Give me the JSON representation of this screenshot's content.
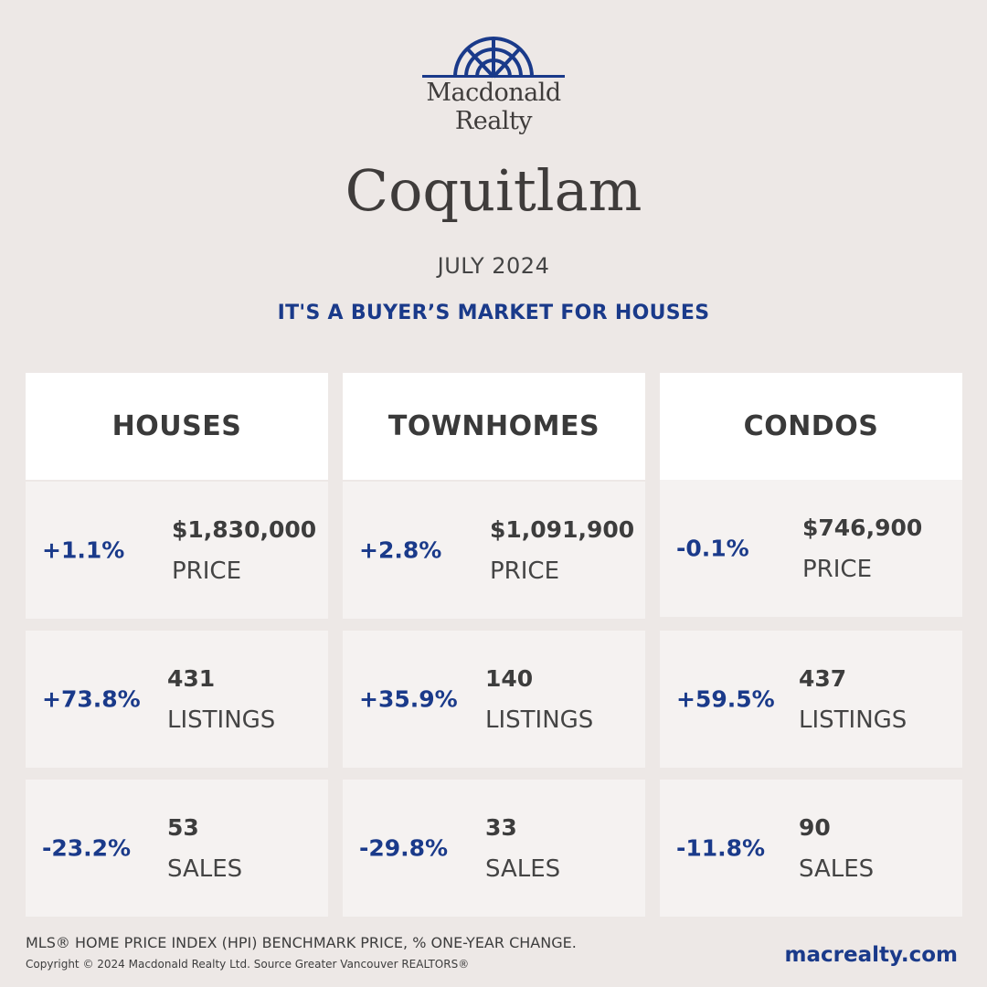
{
  "logo": {
    "line1": "Macdonald",
    "line2": "Realty"
  },
  "city": "Coquitlam",
  "date": "JULY 2024",
  "tagline": "IT'S A BUYER’S MARKET FOR HOUSES",
  "colors": {
    "accent": "#1a3a8a",
    "background": "#ede8e6"
  },
  "columns": [
    {
      "title": "HOUSES",
      "price": {
        "change": "+1.1%",
        "value": "$1,830,000",
        "label": "PRICE"
      },
      "listings": {
        "change": "+73.8%",
        "value": "431",
        "label": "LISTINGS"
      },
      "sales": {
        "change": "-23.2%",
        "value": "53",
        "label": "SALES"
      }
    },
    {
      "title": "TOWNHOMES",
      "price": {
        "change": "+2.8%",
        "value": "$1,091,900",
        "label": "PRICE"
      },
      "listings": {
        "change": "+35.9%",
        "value": "140",
        "label": "LISTINGS"
      },
      "sales": {
        "change": "-29.8%",
        "value": "33",
        "label": "SALES"
      }
    },
    {
      "title": "CONDOS",
      "price": {
        "change": "-0.1%",
        "value": "$746,900",
        "label": "PRICE"
      },
      "listings": {
        "change": "+59.5%",
        "value": "437",
        "label": "LISTINGS"
      },
      "sales": {
        "change": "-11.8%",
        "value": "90",
        "label": "SALES"
      }
    }
  ],
  "footer": {
    "note": "MLS® HOME PRICE INDEX (HPI) BENCHMARK PRICE, % ONE-YEAR CHANGE.",
    "copyright": "Copyright © 2024 Macdonald Realty Ltd. Source Greater Vancouver REALTORS®",
    "url": "macrealty.com"
  }
}
